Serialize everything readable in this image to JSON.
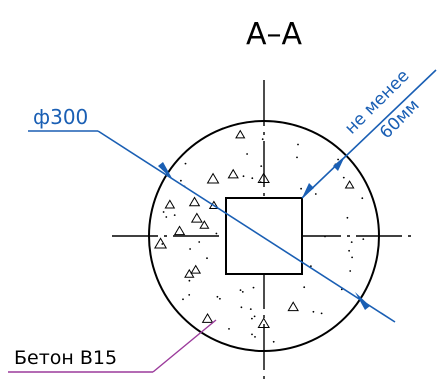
{
  "section_label": "А–А",
  "diameter_label": "ф300",
  "clearance_label_line1": "не менее",
  "clearance_label_line2": "60мм",
  "material_label": "Бетон В15",
  "colors": {
    "drawing": "#000000",
    "dimension": "#1a5fb4",
    "leader": "#9b3a9b",
    "background": "#ffffff"
  }
}
